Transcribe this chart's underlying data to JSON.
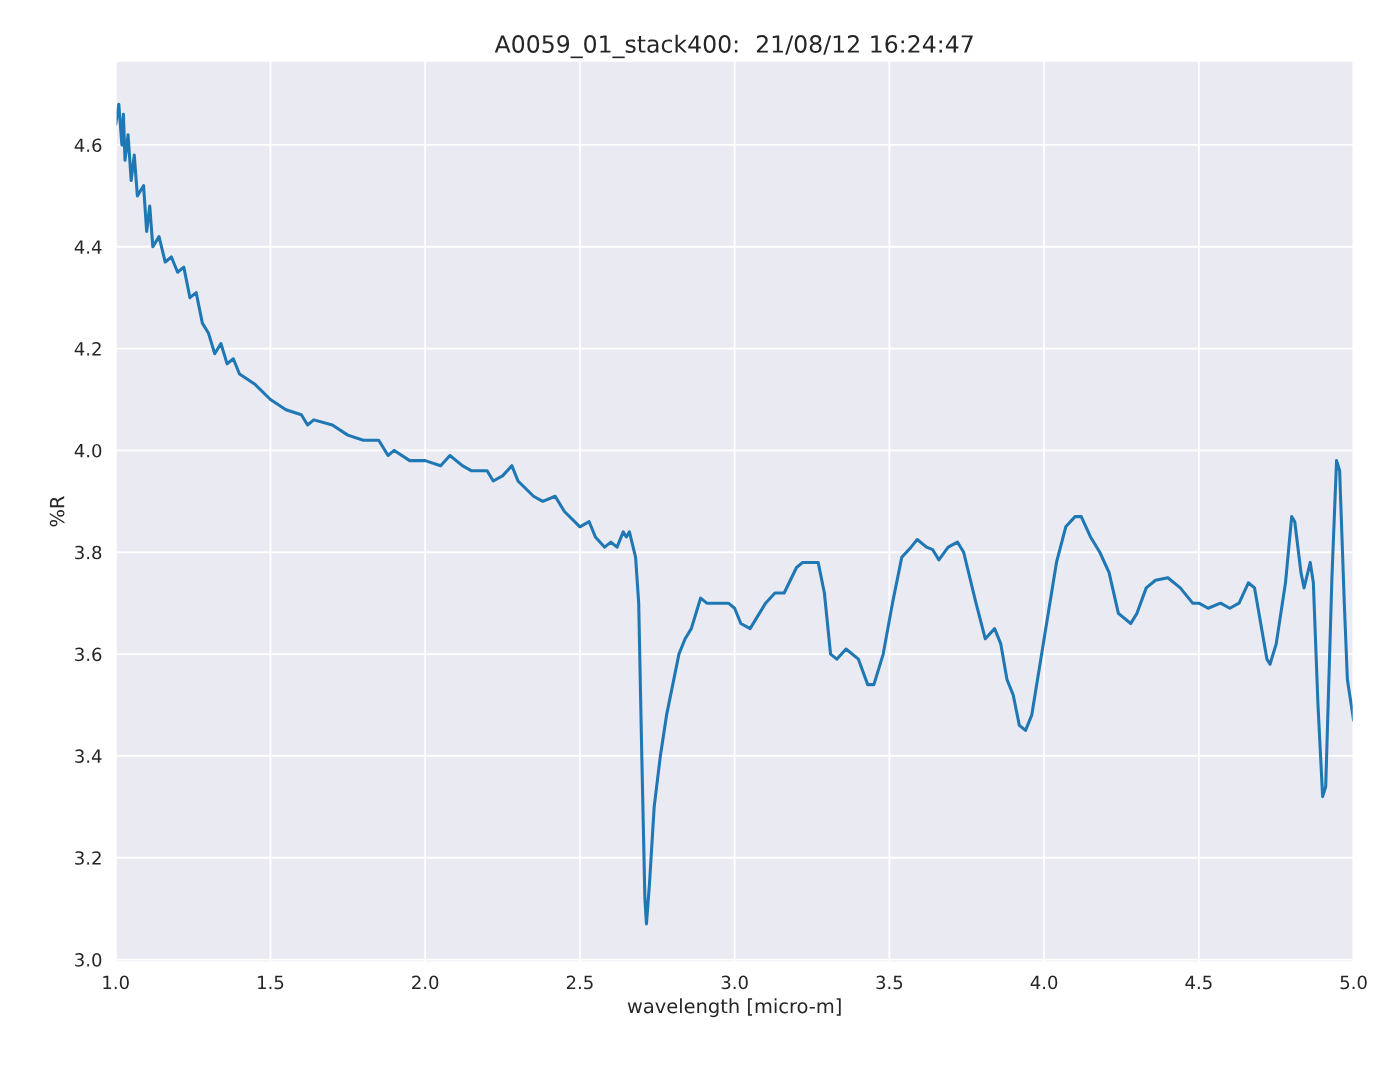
{
  "chart_data": {
    "type": "line",
    "title": "A0059_01_stack400:  21/08/12 16:24:47",
    "xlabel": "wavelength [micro-m]",
    "ylabel": "%R",
    "xlim": [
      1.0,
      5.0
    ],
    "ylim": [
      2.995,
      4.765
    ],
    "xticks": [
      {
        "value": 1.0,
        "label": "1.0"
      },
      {
        "value": 1.5,
        "label": "1.5"
      },
      {
        "value": 2.0,
        "label": "2.0"
      },
      {
        "value": 2.5,
        "label": "2.5"
      },
      {
        "value": 3.0,
        "label": "3.0"
      },
      {
        "value": 3.5,
        "label": "3.5"
      },
      {
        "value": 4.0,
        "label": "4.0"
      },
      {
        "value": 4.5,
        "label": "4.5"
      },
      {
        "value": 5.0,
        "label": "5.0"
      }
    ],
    "yticks": [
      {
        "value": 3.0,
        "label": "3.0"
      },
      {
        "value": 3.2,
        "label": "3.2"
      },
      {
        "value": 3.4,
        "label": "3.4"
      },
      {
        "value": 3.6,
        "label": "3.6"
      },
      {
        "value": 3.8,
        "label": "3.8"
      },
      {
        "value": 4.0,
        "label": "4.0"
      },
      {
        "value": 4.2,
        "label": "4.2"
      },
      {
        "value": 4.4,
        "label": "4.4"
      },
      {
        "value": 4.6,
        "label": "4.6"
      }
    ],
    "grid": true,
    "legend": false,
    "marker": "none",
    "line_style": "solid",
    "series": [
      {
        "color": "#1f77b4",
        "x": [
          1.0,
          1.01,
          1.02,
          1.025,
          1.03,
          1.04,
          1.05,
          1.06,
          1.07,
          1.09,
          1.1,
          1.11,
          1.12,
          1.14,
          1.16,
          1.18,
          1.2,
          1.22,
          1.24,
          1.26,
          1.28,
          1.3,
          1.32,
          1.34,
          1.36,
          1.38,
          1.4,
          1.45,
          1.5,
          1.55,
          1.6,
          1.62,
          1.64,
          1.7,
          1.75,
          1.8,
          1.85,
          1.88,
          1.9,
          1.95,
          2.0,
          2.05,
          2.08,
          2.12,
          2.15,
          2.2,
          2.22,
          2.25,
          2.28,
          2.3,
          2.35,
          2.38,
          2.42,
          2.45,
          2.5,
          2.53,
          2.55,
          2.58,
          2.6,
          2.62,
          2.64,
          2.65,
          2.66,
          2.68,
          2.69,
          2.7,
          2.71,
          2.715,
          2.725,
          2.74,
          2.76,
          2.78,
          2.8,
          2.82,
          2.84,
          2.86,
          2.88,
          2.89,
          2.91,
          2.95,
          2.98,
          3.0,
          3.02,
          3.05,
          3.1,
          3.13,
          3.16,
          3.2,
          3.22,
          3.24,
          3.27,
          3.29,
          3.31,
          3.33,
          3.36,
          3.4,
          3.43,
          3.45,
          3.48,
          3.51,
          3.54,
          3.57,
          3.59,
          3.62,
          3.64,
          3.66,
          3.69,
          3.72,
          3.74,
          3.78,
          3.81,
          3.84,
          3.86,
          3.88,
          3.9,
          3.92,
          3.94,
          3.96,
          4.0,
          4.04,
          4.07,
          4.1,
          4.12,
          4.15,
          4.18,
          4.21,
          4.24,
          4.28,
          4.3,
          4.33,
          4.36,
          4.4,
          4.44,
          4.48,
          4.5,
          4.53,
          4.57,
          4.6,
          4.63,
          4.66,
          4.68,
          4.7,
          4.72,
          4.73,
          4.75,
          4.78,
          4.8,
          4.81,
          4.83,
          4.84,
          4.86,
          4.87,
          4.885,
          4.9,
          4.91,
          4.93,
          4.945,
          4.955,
          4.97,
          4.98,
          5.0
        ],
        "values": [
          4.64,
          4.68,
          4.6,
          4.66,
          4.57,
          4.62,
          4.53,
          4.58,
          4.5,
          4.52,
          4.43,
          4.48,
          4.4,
          4.42,
          4.37,
          4.38,
          4.35,
          4.36,
          4.3,
          4.31,
          4.25,
          4.23,
          4.19,
          4.21,
          4.17,
          4.18,
          4.15,
          4.13,
          4.1,
          4.08,
          4.07,
          4.05,
          4.06,
          4.05,
          4.03,
          4.02,
          4.02,
          3.99,
          4.0,
          3.98,
          3.98,
          3.97,
          3.99,
          3.97,
          3.96,
          3.96,
          3.94,
          3.95,
          3.97,
          3.94,
          3.91,
          3.9,
          3.91,
          3.88,
          3.85,
          3.86,
          3.83,
          3.81,
          3.82,
          3.81,
          3.84,
          3.83,
          3.84,
          3.79,
          3.7,
          3.4,
          3.12,
          3.07,
          3.15,
          3.3,
          3.4,
          3.48,
          3.54,
          3.6,
          3.63,
          3.65,
          3.69,
          3.71,
          3.7,
          3.7,
          3.7,
          3.69,
          3.66,
          3.65,
          3.7,
          3.72,
          3.72,
          3.77,
          3.78,
          3.78,
          3.78,
          3.72,
          3.6,
          3.59,
          3.61,
          3.59,
          3.54,
          3.54,
          3.6,
          3.7,
          3.79,
          3.81,
          3.825,
          3.81,
          3.805,
          3.785,
          3.81,
          3.82,
          3.8,
          3.7,
          3.63,
          3.65,
          3.62,
          3.55,
          3.52,
          3.46,
          3.45,
          3.48,
          3.63,
          3.78,
          3.85,
          3.87,
          3.87,
          3.83,
          3.8,
          3.76,
          3.68,
          3.66,
          3.68,
          3.73,
          3.745,
          3.75,
          3.73,
          3.7,
          3.7,
          3.69,
          3.7,
          3.69,
          3.7,
          3.74,
          3.73,
          3.66,
          3.59,
          3.58,
          3.62,
          3.74,
          3.87,
          3.86,
          3.76,
          3.73,
          3.78,
          3.74,
          3.5,
          3.32,
          3.34,
          3.75,
          3.98,
          3.96,
          3.7,
          3.55,
          3.47
        ]
      }
    ]
  }
}
